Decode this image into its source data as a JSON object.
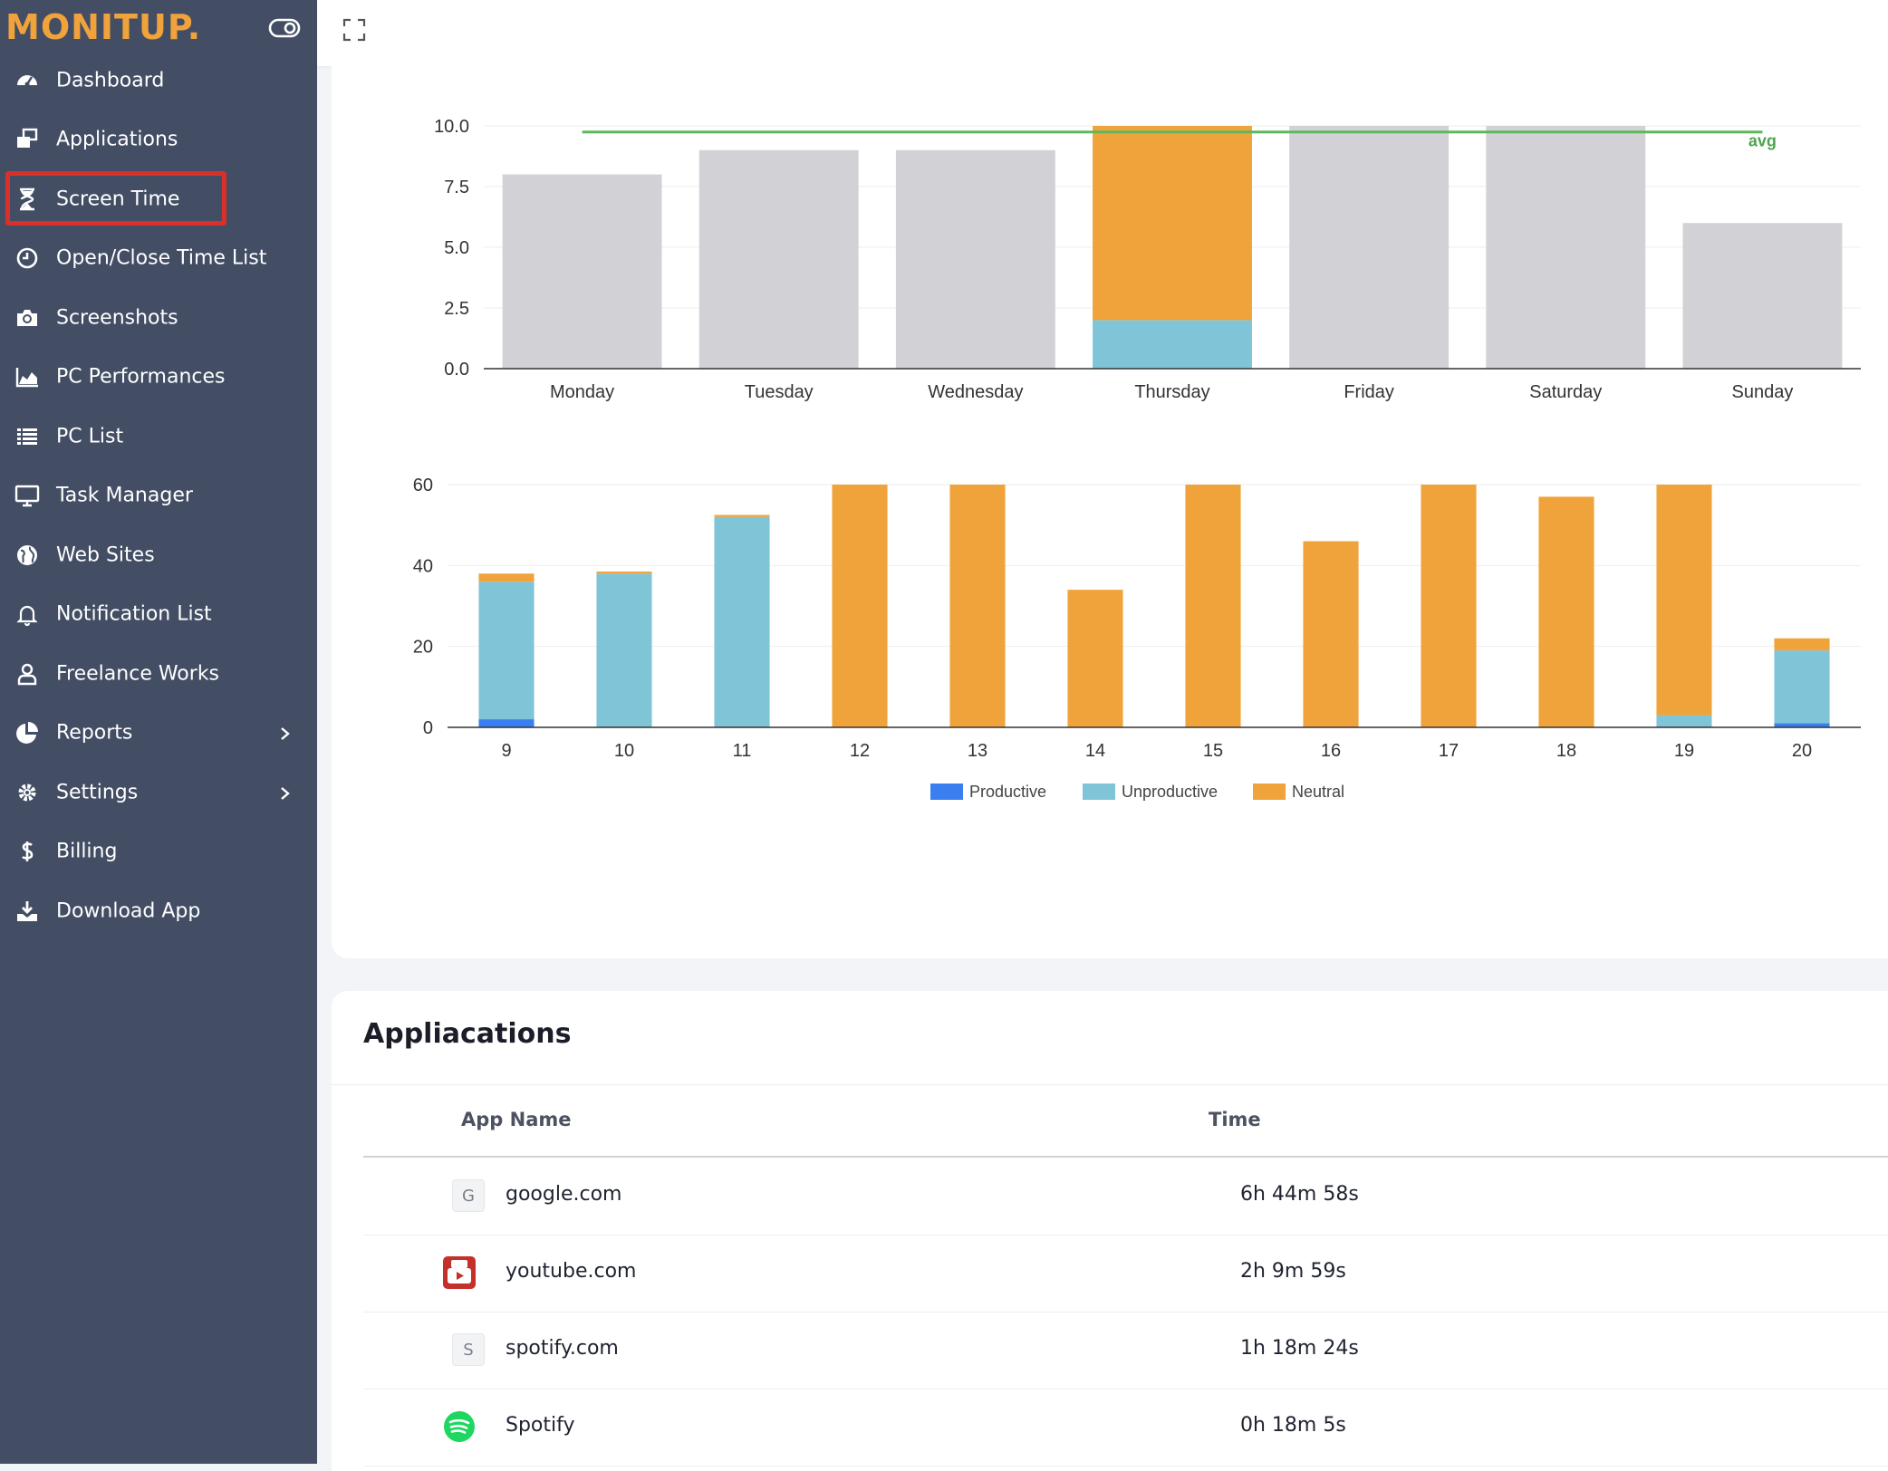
{
  "brand": {
    "name": "MONITUP."
  },
  "sidebar": {
    "items": [
      {
        "label": "Dashboard",
        "icon": "gauge-icon"
      },
      {
        "label": "Applications",
        "icon": "windows-icon"
      },
      {
        "label": "Screen Time",
        "icon": "hourglass-icon",
        "highlighted": true
      },
      {
        "label": "Open/Close Time List",
        "icon": "clock-icon"
      },
      {
        "label": "Screenshots",
        "icon": "camera-icon"
      },
      {
        "label": "PC Performances",
        "icon": "area-chart-icon"
      },
      {
        "label": "PC List",
        "icon": "list-icon"
      },
      {
        "label": "Task Manager",
        "icon": "monitor-icon"
      },
      {
        "label": "Web Sites",
        "icon": "globe-icon"
      },
      {
        "label": "Notification List",
        "icon": "bell-icon"
      },
      {
        "label": "Freelance Works",
        "icon": "user-icon"
      },
      {
        "label": "Reports",
        "icon": "pie-chart-icon",
        "has_submenu": true
      },
      {
        "label": "Settings",
        "icon": "gear-icon",
        "has_submenu": true
      },
      {
        "label": "Billing",
        "icon": "dollar-icon"
      },
      {
        "label": "Download App",
        "icon": "download-icon"
      }
    ]
  },
  "colors": {
    "productive": "#3b7ef0",
    "unproductive": "#80c4d8",
    "neutral": "#f0a33a",
    "idle_gray": "#d2d2d6",
    "avg_line": "#5cb85c",
    "highlight_box": "#d9302a"
  },
  "chart_data": [
    {
      "type": "bar",
      "categories": [
        "Monday",
        "Tuesday",
        "Wednesday",
        "Thursday",
        "Friday",
        "Saturday",
        "Sunday"
      ],
      "series": [
        {
          "name": "",
          "color": "#d2d2d6",
          "values": [
            8,
            9,
            9,
            0,
            10,
            10,
            6
          ]
        },
        {
          "name": "Unproductive",
          "color": "#80c4d8",
          "values": [
            0,
            0,
            0,
            2,
            0,
            0,
            0
          ]
        },
        {
          "name": "Neutral",
          "color": "#f0a33a",
          "values": [
            0,
            0,
            0,
            8,
            0,
            0,
            0
          ]
        }
      ],
      "stacked": true,
      "avg_line": {
        "label": "avg",
        "value": 9.75
      },
      "yticks": [
        "0.0",
        "2.5",
        "5.0",
        "7.5",
        "10.0"
      ],
      "ylim": [
        0,
        10
      ],
      "grid": true
    },
    {
      "type": "bar",
      "categories": [
        "9",
        "10",
        "11",
        "12",
        "13",
        "14",
        "15",
        "16",
        "17",
        "18",
        "19",
        "20"
      ],
      "series": [
        {
          "name": "Productive",
          "color": "#3b7ef0",
          "values": [
            2,
            0,
            0,
            0,
            0,
            0,
            0,
            0,
            0,
            0,
            0,
            1
          ]
        },
        {
          "name": "Unproductive",
          "color": "#80c4d8",
          "values": [
            34,
            38,
            52,
            0,
            0,
            0,
            0,
            0,
            0,
            0,
            3,
            18
          ]
        },
        {
          "name": "Neutral",
          "color": "#f0a33a",
          "values": [
            2,
            0.5,
            0.5,
            60,
            60,
            34,
            60,
            46,
            60,
            57,
            57,
            3
          ]
        }
      ],
      "stacked": true,
      "yticks": [
        "0",
        "20",
        "40",
        "60"
      ],
      "ylim": [
        0,
        60
      ],
      "legend": "bottom-center",
      "grid": true
    }
  ],
  "applications": {
    "title": "Appliacations",
    "columns": {
      "name": "App Name",
      "time": "Time"
    },
    "rows": [
      {
        "name": "google.com",
        "time": "6h 44m 58s",
        "icon": "G",
        "icon_kind": "letter"
      },
      {
        "name": "youtube.com",
        "time": "2h 9m 59s",
        "icon": "youtube-icon",
        "icon_kind": "youtube"
      },
      {
        "name": "spotify.com",
        "time": "1h 18m 24s",
        "icon": "S",
        "icon_kind": "letter"
      },
      {
        "name": "Spotify",
        "time": "0h 18m 5s",
        "icon": "spotify-icon",
        "icon_kind": "spotify"
      }
    ]
  }
}
